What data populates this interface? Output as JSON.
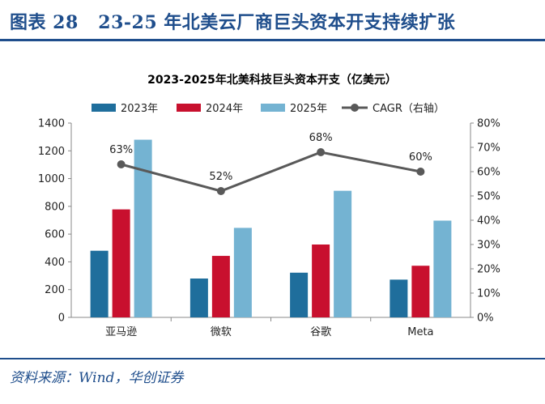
{
  "figure": {
    "label": "图表 28",
    "title": "23-25 年北美云厂商巨头资本开支持续扩张",
    "source": "资料来源：Wind，华创证券"
  },
  "chart_data": {
    "type": "bar",
    "title": "2023-2025年北美科技巨头资本开支（亿美元）",
    "categories": [
      "亚马逊",
      "微软",
      "谷歌",
      "Meta"
    ],
    "series": [
      {
        "name": "2023年",
        "type": "bar",
        "axis": "left",
        "color": "#1f6e9c",
        "values": [
          480,
          280,
          322,
          272
        ]
      },
      {
        "name": "2024年",
        "type": "bar",
        "axis": "left",
        "color": "#c8102e",
        "values": [
          778,
          443,
          525,
          372
        ]
      },
      {
        "name": "2025年",
        "type": "bar",
        "axis": "left",
        "color": "#74b3d2",
        "values": [
          1280,
          645,
          912,
          697
        ]
      },
      {
        "name": "CAGR（右轴）",
        "type": "line",
        "axis": "right",
        "color": "#595959",
        "values": [
          63,
          52,
          68,
          60
        ],
        "labels": [
          "63%",
          "52%",
          "68%",
          "60%"
        ]
      }
    ],
    "yAxisLeft": {
      "min": 0,
      "max": 1400,
      "ticks": [
        "0",
        "200",
        "400",
        "600",
        "800",
        "1000",
        "1200",
        "1400"
      ]
    },
    "yAxisRight": {
      "min": 0,
      "max": 80,
      "ticks": [
        "0%",
        "10%",
        "20%",
        "30%",
        "40%",
        "50%",
        "60%",
        "70%",
        "80%"
      ]
    },
    "legend_position": "top",
    "grid": false
  }
}
